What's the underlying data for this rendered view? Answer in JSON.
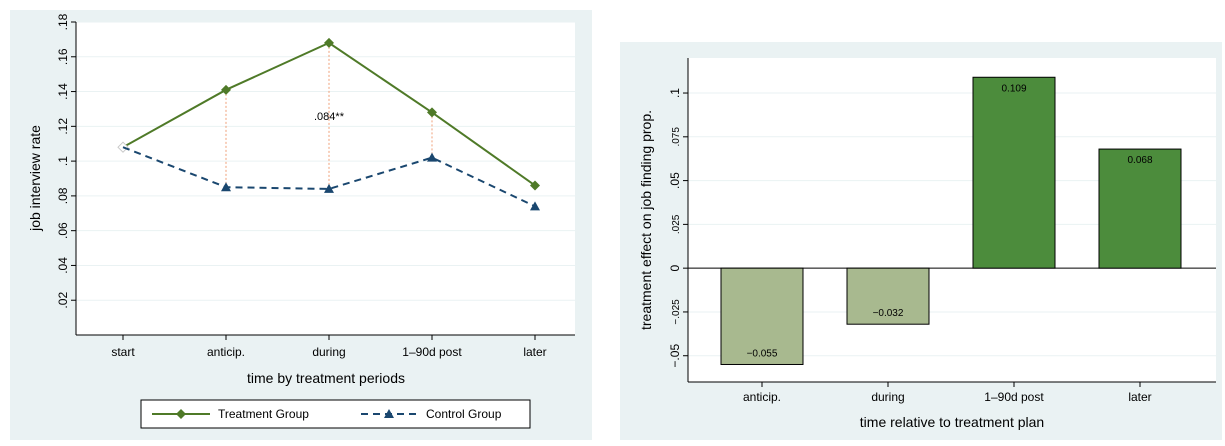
{
  "colors": {
    "panel_background": "#eaf2f3",
    "plot_background": "#ffffff",
    "treatment": "#4f7a28",
    "control": "#1a476f",
    "connector": "#f0a07a",
    "bar_dark": "#4c8c3c",
    "bar_light": "#a8b98f"
  },
  "chart_data": [
    {
      "type": "line",
      "xlabel": "time by treatment periods",
      "ylabel": "job interview rate",
      "categories": [
        "start",
        "anticip.",
        "during",
        "1–90d post",
        "later"
      ],
      "ylim": [
        0,
        0.18
      ],
      "yticks": [
        ".02",
        ".04",
        ".06",
        ".08",
        ".1",
        ".12",
        ".14",
        ".16",
        ".18"
      ],
      "ytick_values": [
        0.02,
        0.04,
        0.06,
        0.08,
        0.1,
        0.12,
        0.14,
        0.16,
        0.18
      ],
      "grid": true,
      "series": [
        {
          "name": "Treatment Group",
          "marker": "diamond",
          "line": "solid",
          "values": [
            0.108,
            0.141,
            0.168,
            0.128,
            0.086
          ]
        },
        {
          "name": "Control Group",
          "marker": "triangle",
          "line": "dashed",
          "values": [
            0.108,
            0.085,
            0.084,
            0.102,
            0.074
          ]
        }
      ],
      "annotation": {
        "text": ".084**",
        "category": "during",
        "y": 0.126
      },
      "legend_position": "bottom"
    },
    {
      "type": "bar",
      "xlabel": "time relative to treatment plan",
      "ylabel": "treatment effect on job finding prop.",
      "categories": [
        "anticip.",
        "during",
        "1–90d post",
        "later"
      ],
      "values": [
        -0.055,
        -0.032,
        0.109,
        0.068
      ],
      "data_labels": [
        "−0.055",
        "−0.032",
        "0.109",
        "0.068"
      ],
      "ylim": [
        -0.065,
        0.12
      ],
      "yticks": [
        "−.05",
        "−.025",
        "0",
        ".025",
        ".05",
        ".075",
        ".1"
      ],
      "ytick_values": [
        -0.05,
        -0.025,
        0,
        0.025,
        0.05,
        0.075,
        0.1
      ],
      "grid": true
    }
  ]
}
